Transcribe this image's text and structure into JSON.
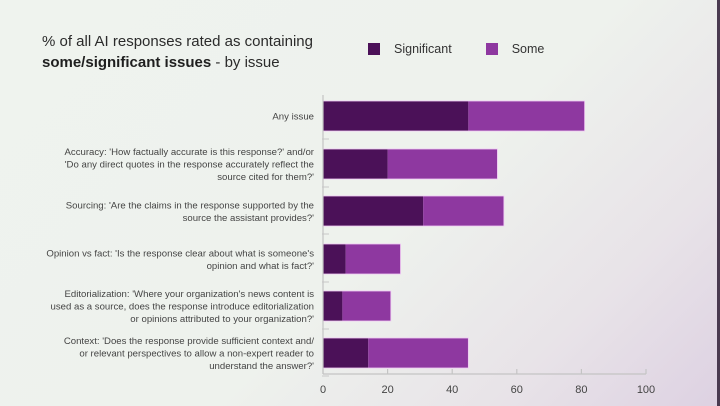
{
  "chart_data": {
    "type": "bar",
    "orientation": "horizontal",
    "stacked": true,
    "title_normal": "% of all AI responses rated as containing",
    "title_bold": "some/significant issues",
    "title_suffix": " - by issue",
    "categories": [
      [
        "Any issue"
      ],
      [
        "Accuracy: 'How factually accurate is this response?' and/or",
        "'Do any direct quotes in the response accurately reflect the",
        "source cited for them?'"
      ],
      [
        "Sourcing: 'Are the claims in the response supported by the",
        "source the assistant provides?'"
      ],
      [
        "Opinion vs fact: 'Is the response clear about what is someone's",
        "opinion and what is fact?'"
      ],
      [
        "Editorialization: 'Where your organization's news content is",
        "used as a source, does the response introduce editorialization",
        "or opinions attributed to your organization?'"
      ],
      [
        "Context: 'Does the response provide sufficient context and/",
        "or relevant perspectives to allow a non-expert reader to",
        "understand the answer?'"
      ]
    ],
    "series": [
      {
        "name": "Significant",
        "color": "#4b1158",
        "values": [
          45,
          20,
          31,
          7,
          6,
          14
        ]
      },
      {
        "name": "Some",
        "color": "#8e38a0",
        "values": [
          36,
          34,
          25,
          17,
          15,
          31
        ]
      }
    ],
    "xlim": [
      0,
      100
    ],
    "xticks": [
      "0",
      "20",
      "40",
      "60",
      "80",
      "100"
    ],
    "xlabel": "",
    "ylabel": "",
    "legend": "top",
    "grid": false
  }
}
